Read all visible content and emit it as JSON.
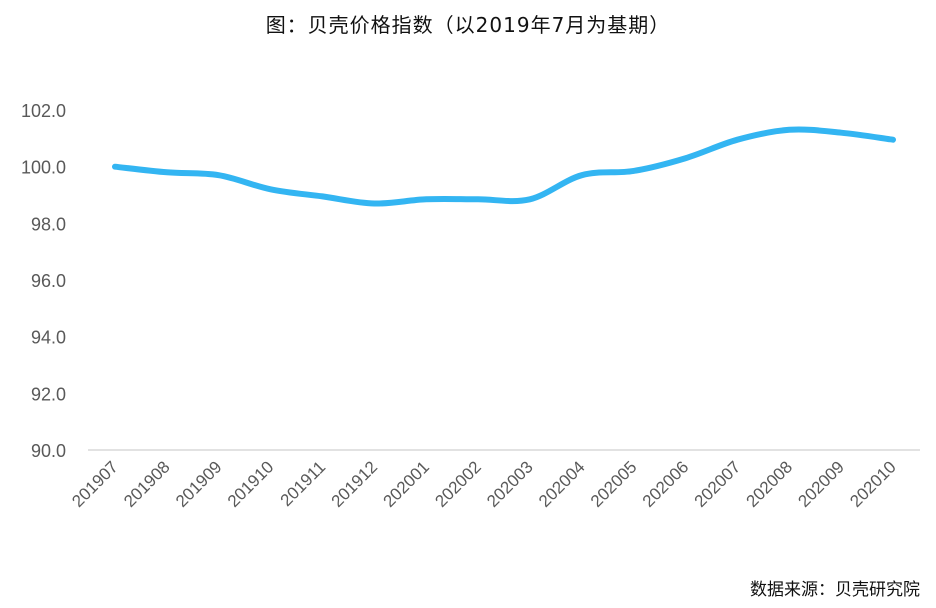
{
  "title": "图：贝壳价格指数（以2019年7月为基期）",
  "source": "数据来源：贝壳研究院",
  "colors": {
    "series": "#33b5f2",
    "axis": "#d9d9d9",
    "tick_text": "#595959"
  },
  "chart_data": {
    "type": "line",
    "x": [
      "201907",
      "201908",
      "201909",
      "201910",
      "201911",
      "201912",
      "202001",
      "202002",
      "202003",
      "202004",
      "202005",
      "202006",
      "202007",
      "202008",
      "202009",
      "202010"
    ],
    "series": [
      {
        "values": [
          100.0,
          99.8,
          99.7,
          99.2,
          98.95,
          98.7,
          98.85,
          98.85,
          98.85,
          99.7,
          99.85,
          100.3,
          100.95,
          101.3,
          101.2,
          100.95
        ]
      }
    ],
    "yticks": [
      "90.0",
      "92.0",
      "94.0",
      "96.0",
      "98.0",
      "100.0",
      "102.0"
    ],
    "ylim": [
      90,
      102
    ],
    "grid": false,
    "legend": "none"
  }
}
